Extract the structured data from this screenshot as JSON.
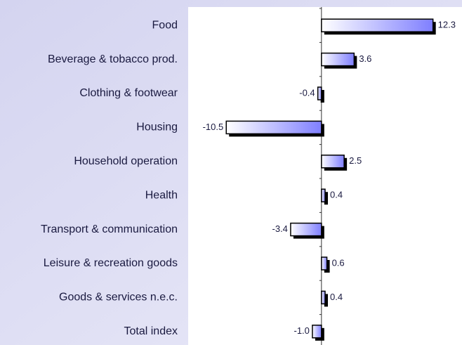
{
  "chart_data": {
    "type": "bar",
    "orientation": "horizontal",
    "categories": [
      "Food",
      "Beverage & tobacco prod.",
      "Clothing & footwear",
      "Housing",
      "Household operation",
      "Health",
      "Transport & communication",
      "Leisure & recreation goods",
      "Goods & services n.e.c.",
      "Total index"
    ],
    "values": [
      12.3,
      3.6,
      -0.4,
      -10.5,
      2.5,
      0.4,
      -3.4,
      0.6,
      0.4,
      -1.0
    ],
    "value_labels": [
      "12.3",
      "3.6",
      "-0.4",
      "-10.5",
      "2.5",
      "0.4",
      "-3.4",
      "0.6",
      "0.4",
      "-1.0"
    ],
    "color": "#7f7fff",
    "xlim": [
      -14.7,
      15.5
    ]
  }
}
